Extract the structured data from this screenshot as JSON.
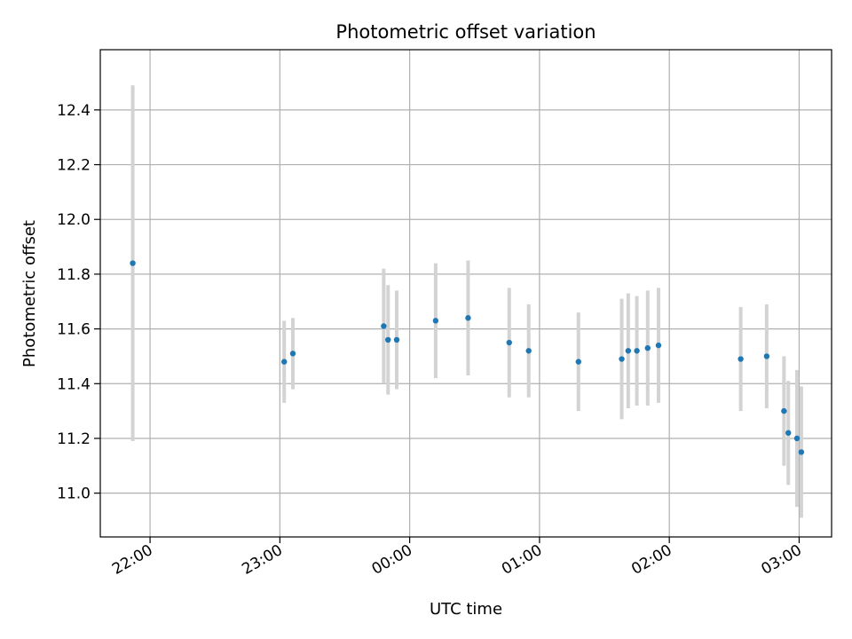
{
  "chart_data": {
    "type": "scatter",
    "title": "Photometric offset variation",
    "xlabel": "UTC time",
    "ylabel": "Photometric offset",
    "x_tick_labels": [
      "22:00",
      "23:00",
      "00:00",
      "01:00",
      "02:00",
      "03:00"
    ],
    "x_tick_times": [
      "22:00",
      "23:00",
      "00:00",
      "01:00",
      "02:00",
      "03:00"
    ],
    "xlim": [
      "21:37",
      "03:15"
    ],
    "y_ticks": [
      11.0,
      11.2,
      11.4,
      11.6,
      11.8,
      12.0,
      12.2,
      12.4
    ],
    "y_tick_labels": [
      "11.0",
      "11.2",
      "11.4",
      "11.6",
      "11.8",
      "12.0",
      "12.2",
      "12.4"
    ],
    "ylim": [
      10.84,
      12.62
    ],
    "grid": true,
    "marker_color": "#1f77b4",
    "errorbar_color": "#d3d3d3",
    "points": [
      {
        "time": "21:52",
        "y": 11.84,
        "err": 0.65
      },
      {
        "time": "23:02",
        "y": 11.48,
        "err": 0.15
      },
      {
        "time": "23:06",
        "y": 11.51,
        "err": 0.13
      },
      {
        "time": "23:48",
        "y": 11.61,
        "err": 0.21
      },
      {
        "time": "23:50",
        "y": 11.56,
        "err": 0.2
      },
      {
        "time": "23:54",
        "y": 11.56,
        "err": 0.18
      },
      {
        "time": "00:12",
        "y": 11.63,
        "err": 0.21
      },
      {
        "time": "00:27",
        "y": 11.64,
        "err": 0.21
      },
      {
        "time": "00:46",
        "y": 11.55,
        "err": 0.2
      },
      {
        "time": "00:55",
        "y": 11.52,
        "err": 0.17
      },
      {
        "time": "01:18",
        "y": 11.48,
        "err": 0.18
      },
      {
        "time": "01:38",
        "y": 11.49,
        "err": 0.22
      },
      {
        "time": "01:41",
        "y": 11.52,
        "err": 0.21
      },
      {
        "time": "01:45",
        "y": 11.52,
        "err": 0.2
      },
      {
        "time": "01:50",
        "y": 11.53,
        "err": 0.21
      },
      {
        "time": "01:55",
        "y": 11.54,
        "err": 0.21
      },
      {
        "time": "02:33",
        "y": 11.49,
        "err": 0.19
      },
      {
        "time": "02:45",
        "y": 11.5,
        "err": 0.19
      },
      {
        "time": "02:53",
        "y": 11.3,
        "err": 0.2
      },
      {
        "time": "02:55",
        "y": 11.22,
        "err": 0.19
      },
      {
        "time": "02:59",
        "y": 11.2,
        "err": 0.25
      },
      {
        "time": "03:01",
        "y": 11.15,
        "err": 0.24
      }
    ]
  }
}
